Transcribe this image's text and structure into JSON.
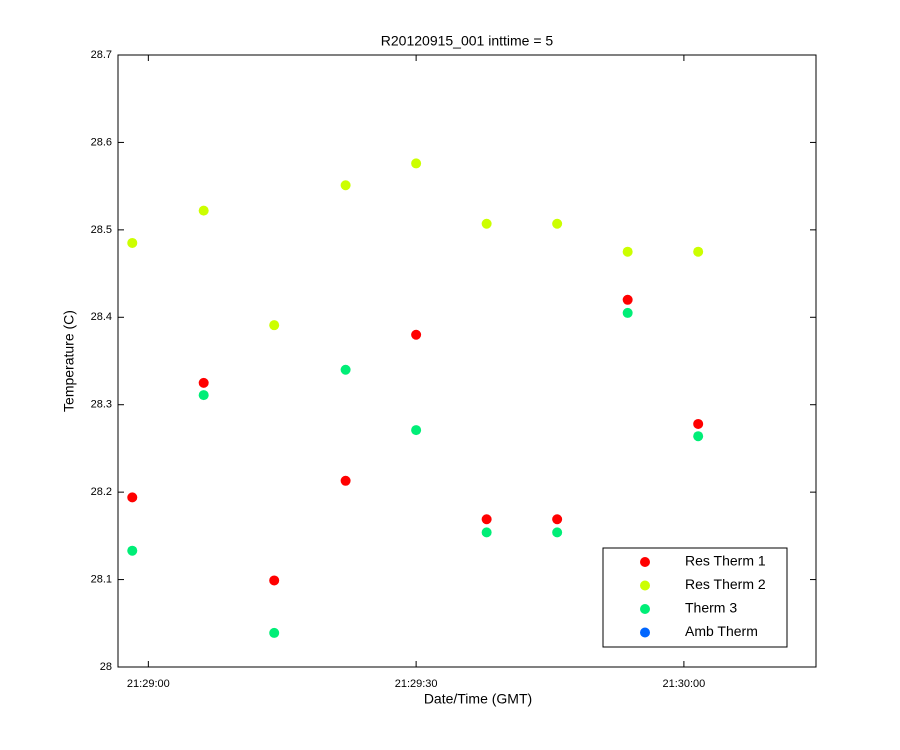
{
  "chart_data": {
    "type": "scatter",
    "title": "R20120915_001 inttime = 5",
    "x_label": "Date/Time (GMT)",
    "y_label": "Temperature (C)",
    "x": [
      -1.8,
      6.2,
      14.1,
      22.1,
      30,
      37.9,
      45.8,
      53.7,
      61.6
    ],
    "series": [
      {
        "name": "Res Therm 1",
        "color": "#ff0000",
        "values": [
          28.194,
          28.325,
          28.099,
          28.213,
          28.38,
          28.169,
          28.169,
          28.42,
          28.278
        ]
      },
      {
        "name": "Res Therm 2",
        "color": "#ccff00",
        "values": [
          28.485,
          28.522,
          28.391,
          28.551,
          28.576,
          28.507,
          28.507,
          28.475,
          28.475
        ]
      },
      {
        "name": "Therm 3",
        "color": "#00ee77",
        "values": [
          28.133,
          28.311,
          28.039,
          28.34,
          28.271,
          28.154,
          28.154,
          28.405,
          28.264
        ]
      },
      {
        "name": "Amb Therm",
        "color": "#0066ff",
        "values": [
          null,
          null,
          null,
          null,
          null,
          null,
          null,
          null,
          null
        ]
      }
    ],
    "xlim": [
      -3.4,
      74.8
    ],
    "xticks": [
      {
        "value": 0,
        "label": "21:29:00"
      },
      {
        "value": 30,
        "label": "21:29:30"
      },
      {
        "value": 60,
        "label": "21:30:00"
      }
    ],
    "ylim": [
      28,
      28.7
    ],
    "yticks": [
      28,
      28.1,
      28.2,
      28.3,
      28.4,
      28.5,
      28.6,
      28.7
    ],
    "grid": false,
    "legend": "southeast"
  }
}
